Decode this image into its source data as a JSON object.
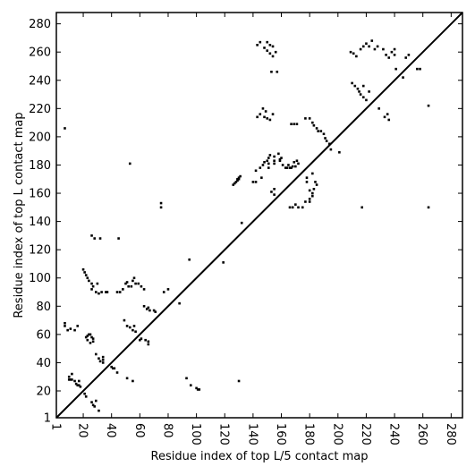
{
  "chart_data": {
    "type": "scatter",
    "xlabel": "Residue index of top L/5 contact map",
    "ylabel": "Residue index of top L contact map",
    "xlim": [
      1,
      288
    ],
    "ylim": [
      1,
      288
    ],
    "xticks": [
      1,
      20,
      40,
      60,
      80,
      100,
      120,
      140,
      160,
      180,
      200,
      220,
      240,
      260,
      280
    ],
    "yticks": [
      1,
      20,
      40,
      60,
      80,
      100,
      120,
      140,
      160,
      180,
      200,
      220,
      240,
      260,
      280
    ],
    "diagonal": true,
    "point_color": "#000000",
    "lower_contacts": [
      [
        10,
        28
      ],
      [
        11,
        28
      ],
      [
        12,
        28
      ],
      [
        10,
        30
      ],
      [
        12,
        32
      ],
      [
        14,
        27
      ],
      [
        15,
        25
      ],
      [
        16,
        24
      ],
      [
        17,
        24
      ],
      [
        17,
        27
      ],
      [
        18,
        23
      ],
      [
        21,
        18
      ],
      [
        22,
        16
      ],
      [
        26,
        12
      ],
      [
        27,
        10
      ],
      [
        28,
        9
      ],
      [
        29,
        13
      ],
      [
        31,
        6
      ],
      [
        22,
        58
      ],
      [
        23,
        56
      ],
      [
        25,
        54
      ],
      [
        27,
        57
      ],
      [
        27,
        55
      ],
      [
        29,
        46
      ],
      [
        31,
        43
      ],
      [
        32,
        41
      ],
      [
        34,
        44
      ],
      [
        34,
        42
      ],
      [
        34,
        40
      ],
      [
        40,
        37
      ],
      [
        41,
        36
      ],
      [
        42,
        36
      ],
      [
        44,
        33
      ],
      [
        49,
        70
      ],
      [
        51,
        66
      ],
      [
        53,
        65
      ],
      [
        55,
        63
      ],
      [
        56,
        66
      ],
      [
        57,
        62
      ],
      [
        61,
        57
      ],
      [
        64,
        56
      ],
      [
        66,
        55
      ],
      [
        66,
        53
      ],
      [
        63,
        80
      ],
      [
        65,
        78
      ],
      [
        66,
        79
      ],
      [
        67,
        77
      ],
      [
        70,
        77
      ],
      [
        71,
        76
      ],
      [
        51,
        29
      ],
      [
        55,
        27
      ],
      [
        60,
        56
      ],
      [
        77,
        90
      ],
      [
        80,
        92
      ],
      [
        88,
        82
      ],
      [
        93,
        29
      ],
      [
        96,
        24
      ],
      [
        100,
        22
      ],
      [
        101,
        21
      ],
      [
        102,
        21
      ],
      [
        130,
        27
      ],
      [
        132,
        139
      ],
      [
        23,
        59
      ],
      [
        24,
        60
      ],
      [
        25,
        60
      ],
      [
        26,
        58
      ],
      [
        140,
        168
      ],
      [
        142,
        168
      ],
      [
        146,
        171
      ],
      [
        153,
        161
      ],
      [
        155,
        159
      ],
      [
        155,
        163
      ],
      [
        151,
        178
      ],
      [
        151,
        181
      ],
      [
        155,
        181
      ],
      [
        155,
        183
      ],
      [
        159,
        183
      ],
      [
        160,
        185
      ],
      [
        164,
        178
      ],
      [
        166,
        178
      ],
      [
        168,
        179
      ],
      [
        170,
        179
      ],
      [
        166,
        150
      ],
      [
        168,
        150
      ],
      [
        170,
        152
      ],
      [
        172,
        150
      ],
      [
        175,
        150
      ],
      [
        177,
        154
      ],
      [
        180,
        154
      ],
      [
        180,
        156
      ],
      [
        180,
        162
      ],
      [
        182,
        158
      ],
      [
        182,
        160
      ],
      [
        183,
        163
      ],
      [
        185,
        166
      ],
      [
        184,
        168
      ],
      [
        178,
        168
      ],
      [
        178,
        171
      ],
      [
        182,
        174
      ],
      [
        195,
        191
      ],
      [
        201,
        189
      ],
      [
        217,
        150
      ],
      [
        264,
        150
      ]
    ],
    "upper_contacts": [
      [
        7,
        206
      ],
      [
        7,
        66
      ],
      [
        7,
        68
      ],
      [
        9,
        63
      ],
      [
        11,
        64
      ],
      [
        14,
        63
      ],
      [
        16,
        66
      ],
      [
        20,
        106
      ],
      [
        21,
        104
      ],
      [
        22,
        102
      ],
      [
        23,
        100
      ],
      [
        24,
        98
      ],
      [
        26,
        96
      ],
      [
        27,
        94
      ],
      [
        26,
        92
      ],
      [
        29,
        90
      ],
      [
        31,
        89
      ],
      [
        33,
        90
      ],
      [
        36,
        90
      ],
      [
        30,
        96
      ],
      [
        37,
        90
      ],
      [
        26,
        130
      ],
      [
        28,
        128
      ],
      [
        32,
        128
      ],
      [
        45,
        128
      ],
      [
        44,
        90
      ],
      [
        46,
        90
      ],
      [
        48,
        92
      ],
      [
        50,
        96
      ],
      [
        52,
        94
      ],
      [
        54,
        94
      ],
      [
        55,
        98
      ],
      [
        57,
        96
      ],
      [
        59,
        96
      ],
      [
        61,
        94
      ],
      [
        63,
        92
      ],
      [
        53,
        181
      ],
      [
        56,
        100
      ],
      [
        51,
        97
      ],
      [
        75,
        150
      ],
      [
        75,
        153
      ],
      [
        119,
        111
      ],
      [
        95,
        113
      ],
      [
        126,
        166
      ],
      [
        128,
        168
      ],
      [
        129,
        170
      ],
      [
        130,
        171
      ],
      [
        127,
        167
      ],
      [
        129,
        169
      ],
      [
        131,
        172
      ],
      [
        130,
        170
      ],
      [
        142,
        176
      ],
      [
        145,
        178
      ],
      [
        147,
        180
      ],
      [
        148,
        182
      ],
      [
        150,
        183
      ],
      [
        151,
        185
      ],
      [
        152,
        187
      ],
      [
        155,
        186
      ],
      [
        158,
        188
      ],
      [
        159,
        184
      ],
      [
        161,
        180
      ],
      [
        163,
        178
      ],
      [
        165,
        180
      ],
      [
        167,
        178
      ],
      [
        169,
        182
      ],
      [
        171,
        183
      ],
      [
        172,
        181
      ],
      [
        143,
        214
      ],
      [
        145,
        216
      ],
      [
        148,
        214
      ],
      [
        150,
        213
      ],
      [
        152,
        212
      ],
      [
        149,
        218
      ],
      [
        147,
        220
      ],
      [
        154,
        216
      ],
      [
        143,
        265
      ],
      [
        145,
        267
      ],
      [
        148,
        263
      ],
      [
        150,
        261
      ],
      [
        150,
        267
      ],
      [
        152,
        265
      ],
      [
        154,
        264
      ],
      [
        152,
        259
      ],
      [
        154,
        257
      ],
      [
        156,
        260
      ],
      [
        153,
        246
      ],
      [
        157,
        246
      ],
      [
        167,
        209
      ],
      [
        169,
        209
      ],
      [
        171,
        209
      ],
      [
        177,
        213
      ],
      [
        180,
        213
      ],
      [
        182,
        210
      ],
      [
        183,
        208
      ],
      [
        185,
        206
      ],
      [
        186,
        204
      ],
      [
        188,
        204
      ],
      [
        190,
        202
      ],
      [
        191,
        199
      ],
      [
        192,
        197
      ],
      [
        194,
        195
      ],
      [
        210,
        238
      ],
      [
        212,
        236
      ],
      [
        214,
        234
      ],
      [
        216,
        230
      ],
      [
        218,
        228
      ],
      [
        220,
        226
      ],
      [
        222,
        232
      ],
      [
        218,
        236
      ],
      [
        215,
        232
      ],
      [
        209,
        260
      ],
      [
        213,
        257
      ],
      [
        211,
        259
      ],
      [
        216,
        262
      ],
      [
        218,
        264
      ],
      [
        220,
        266
      ],
      [
        222,
        264
      ],
      [
        224,
        268
      ],
      [
        226,
        262
      ],
      [
        228,
        264
      ],
      [
        232,
        262
      ],
      [
        234,
        258
      ],
      [
        236,
        256
      ],
      [
        238,
        260
      ],
      [
        240,
        262
      ],
      [
        240,
        258
      ],
      [
        229,
        220
      ],
      [
        233,
        214
      ],
      [
        235,
        216
      ],
      [
        236,
        212
      ],
      [
        241,
        248
      ],
      [
        246,
        242
      ],
      [
        248,
        256
      ],
      [
        250,
        258
      ],
      [
        256,
        248
      ],
      [
        258,
        248
      ],
      [
        264,
        222
      ]
    ]
  }
}
